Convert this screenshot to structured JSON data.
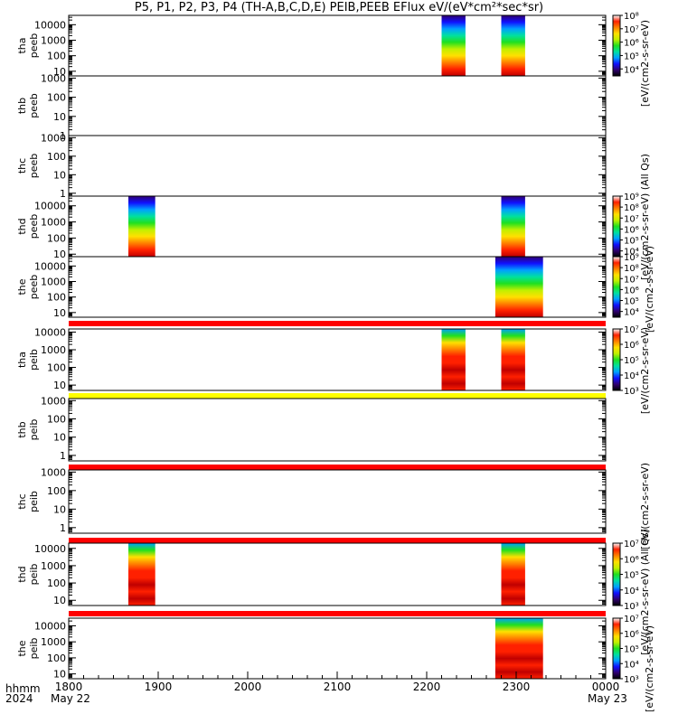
{
  "title": "P5, P1, P2, P3, P4 (TH-A,B,C,D,E) PEIB,PEEB EFlux eV/(eV*cm²*sec*sr)",
  "time_axis": {
    "row_label_1": "hhmm",
    "row_label_2": "2024",
    "ticks": [
      "1800",
      "1900",
      "2000",
      "2100",
      "2200",
      "2300",
      "0000"
    ],
    "date_start": "May 22",
    "date_end": "May 23"
  },
  "colors": {
    "colormap": [
      "#300070",
      "#1010ff",
      "#00a0ff",
      "#00e0a0",
      "#20e020",
      "#c0f000",
      "#ffe000",
      "#ff8000",
      "#ff2000",
      "#c00000"
    ],
    "flag_red": "#ff0000",
    "flag_yellow": "#ffff00",
    "frame": "#000000"
  },
  "chart_data": {
    "type": "heatmap",
    "x_unit": "UT",
    "x_range": [
      "2024-05-22 18:00",
      "2024-05-23 00:00"
    ],
    "y_scale": "log",
    "panels": [
      {
        "id": "tha-peeb",
        "label_1": "tha",
        "label_2": "peeb",
        "ylim": [
          5,
          40000
        ],
        "y_ticks": [
          "10",
          "100",
          "1000",
          "10000"
        ],
        "intervals": [
          [
            "22:10",
            "22:26"
          ],
          [
            "22:50",
            "23:06"
          ]
        ],
        "colorbar": {
          "ticks": [
            "10⁴",
            "10⁵",
            "10⁶",
            "10⁷",
            "10⁸"
          ],
          "range": [
            3000,
            100000000
          ]
        }
      },
      {
        "id": "thb-peeb",
        "label_1": "thb",
        "label_2": "peeb",
        "ylim": [
          1,
          1300
        ],
        "y_ticks": [
          "1",
          "10",
          "100",
          "1000"
        ],
        "intervals": []
      },
      {
        "id": "thc-peeb",
        "label_1": "thc",
        "label_2": "peeb",
        "ylim": [
          0.7,
          1300
        ],
        "y_ticks": [
          "1",
          "10",
          "100",
          "1000"
        ],
        "intervals": []
      },
      {
        "id": "thd-peeb",
        "label_1": "thd",
        "label_2": "peeb",
        "ylim": [
          7,
          40000
        ],
        "y_ticks": [
          "10",
          "100",
          "1000",
          "10000"
        ],
        "intervals": [
          [
            "18:40",
            "18:58"
          ],
          [
            "22:50",
            "23:06"
          ]
        ],
        "colorbar": {
          "ticks": [
            "10⁴",
            "10⁵",
            "10⁶",
            "10⁷",
            "10⁸",
            "10⁹"
          ],
          "range": [
            3000,
            1000000000
          ]
        }
      },
      {
        "id": "the-peeb",
        "label_1": "the",
        "label_2": "peeb",
        "ylim": [
          5,
          40000
        ],
        "y_ticks": [
          "10",
          "100",
          "1000",
          "10000"
        ],
        "intervals": [
          [
            "22:46",
            "23:18"
          ]
        ],
        "flag_bar": "red",
        "colorbar": {
          "ticks": [
            "10⁴",
            "10⁵",
            "10⁶",
            "10⁷",
            "10⁸",
            "10⁹"
          ],
          "range": [
            3000,
            1000000000
          ]
        }
      },
      {
        "id": "tha-peib",
        "label_1": "tha",
        "label_2": "peib",
        "ylim": [
          5,
          15000
        ],
        "y_ticks": [
          "10",
          "100",
          "1000",
          "10000"
        ],
        "intervals": [
          [
            "22:10",
            "22:26"
          ],
          [
            "22:50",
            "23:06"
          ]
        ],
        "flag_bar": "yellow",
        "colorbar": {
          "ticks": [
            "10³",
            "10⁴",
            "10⁵",
            "10⁶",
            "10⁷"
          ],
          "range": [
            1000,
            10000000
          ]
        }
      },
      {
        "id": "thb-peib",
        "label_1": "thb",
        "label_2": "peib",
        "ylim": [
          0.5,
          1300
        ],
        "y_ticks": [
          "1",
          "10",
          "100",
          "1000"
        ],
        "intervals": [],
        "flag_bar": "red"
      },
      {
        "id": "thc-peib",
        "label_1": "thc",
        "label_2": "peib",
        "ylim": [
          0.5,
          1300
        ],
        "y_ticks": [
          "1",
          "10",
          "100",
          "1000"
        ],
        "intervals": [],
        "flag_bar": "red"
      },
      {
        "id": "thd-peib",
        "label_1": "thd",
        "label_2": "peib",
        "ylim": [
          5,
          20000
        ],
        "y_ticks": [
          "10",
          "100",
          "1000",
          "10000"
        ],
        "intervals": [
          [
            "18:40",
            "18:58"
          ],
          [
            "22:50",
            "23:06"
          ]
        ],
        "flag_bar": "red",
        "colorbar": {
          "ticks": [
            "10³",
            "10⁴",
            "10⁵",
            "10⁶",
            "10⁷"
          ],
          "range": [
            1000,
            10000000
          ]
        }
      },
      {
        "id": "the-peib",
        "label_1": "the",
        "label_2": "peib",
        "ylim": [
          5,
          30000
        ],
        "y_ticks": [
          "10",
          "100",
          "1000",
          "10000"
        ],
        "intervals": [
          [
            "22:46",
            "23:18"
          ]
        ],
        "colorbar": {
          "ticks": [
            "10³",
            "10⁴",
            "10⁵",
            "10⁶",
            "10⁷"
          ],
          "range": [
            1000,
            10000000
          ]
        }
      }
    ],
    "colorbar_titles": [
      "[eV/(cm2-s-sr-eV)",
      "[eV/(cm2-s-sr-eV) (All Qs)",
      "[eV/(cm2-s-sr-eV)",
      "[eV/(cm2-s-sr-eV)",
      "[eV/(cm2-s-sr-eV)",
      "[eV/(cm2-s-sr-eV) (All Qs)",
      "[eV/(cm2-s-sr-eV)"
    ]
  }
}
